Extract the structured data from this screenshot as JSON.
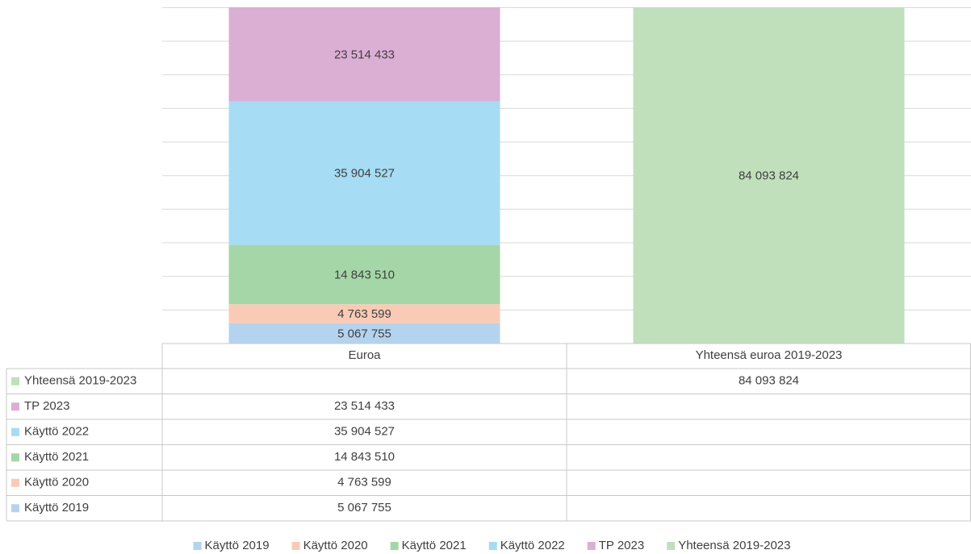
{
  "chart_data": {
    "type": "stacked-bar",
    "categories": [
      "Euroa",
      "Yhteensä euroa 2019-2023"
    ],
    "series": [
      {
        "name": "Käyttö 2019",
        "color": "#b4d3ef",
        "values": [
          5067755,
          null
        ],
        "value_labels": [
          "5 067 755",
          null
        ]
      },
      {
        "name": "Käyttö 2020",
        "color": "#f9cbb6",
        "values": [
          4763599,
          null
        ],
        "value_labels": [
          "4 763 599",
          null
        ]
      },
      {
        "name": "Käyttö 2021",
        "color": "#a4d6a8",
        "values": [
          14843510,
          null
        ],
        "value_labels": [
          "14 843 510",
          null
        ]
      },
      {
        "name": "Käyttö 2022",
        "color": "#a6dcf4",
        "values": [
          35904527,
          null
        ],
        "value_labels": [
          "35 904 527",
          null
        ]
      },
      {
        "name": "TP 2023",
        "color": "#dbaed4",
        "values": [
          23514433,
          null
        ],
        "value_labels": [
          "23 514 433",
          null
        ]
      },
      {
        "name": "Yhteensä 2019-2023",
        "color": "#bfe0bb",
        "values": [
          null,
          84093824
        ],
        "value_labels": [
          null,
          "84 093 824"
        ]
      }
    ],
    "ylim": [
      0,
      84093824
    ],
    "yticks": [
      0,
      8400000,
      16800000,
      25200000,
      33600000,
      42000000,
      50400000,
      58800000,
      67200000,
      75600000,
      84000000
    ],
    "grid": true
  }
}
